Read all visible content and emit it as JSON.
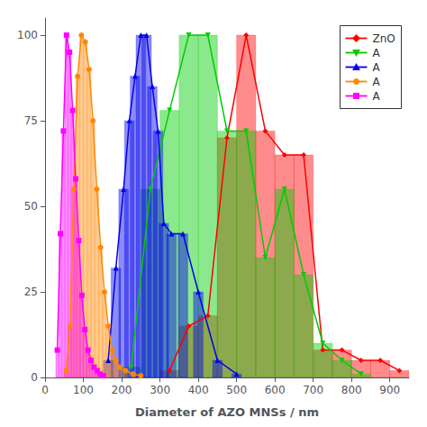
{
  "chart_data": {
    "type": "bar_line",
    "xlabel": "Diameter of AZO MNSs / nm",
    "xlim": [
      0,
      950
    ],
    "ylim": [
      0,
      105
    ],
    "xticks": [
      0,
      100,
      200,
      300,
      400,
      500,
      600,
      700,
      800,
      900
    ],
    "yticks": [
      0,
      25,
      50,
      75,
      100
    ],
    "grid": false,
    "legend": "upper right",
    "series": [
      {
        "name": "ZnO",
        "color": "#FF0000",
        "marker": "diamond",
        "bar_width": 50,
        "x": [
          325,
          375,
          425,
          475,
          525,
          575,
          625,
          675,
          725,
          775,
          825,
          875,
          925
        ],
        "values": [
          2,
          15,
          18,
          70,
          100,
          72,
          65,
          65,
          8,
          8,
          5,
          5,
          2
        ]
      },
      {
        "name": "A",
        "color": "#00CC00",
        "marker": "triangle_down",
        "bar_width": 50,
        "x": [
          225,
          275,
          325,
          375,
          425,
          475,
          525,
          575,
          625,
          675,
          725,
          775,
          825
        ],
        "values": [
          3,
          55,
          78,
          100,
          100,
          72,
          72,
          35,
          55,
          30,
          10,
          5,
          1
        ]
      },
      {
        "name": "A",
        "color": "#0000EE",
        "marker": "triangle_up",
        "bar_width": 25,
        "x": [
          165,
          185,
          205,
          220,
          235,
          250,
          265,
          280,
          295,
          310,
          330,
          360,
          400,
          450,
          500
        ],
        "values": [
          5,
          32,
          55,
          75,
          88,
          100,
          100,
          85,
          72,
          45,
          42,
          42,
          25,
          5,
          1
        ]
      },
      {
        "name": "A",
        "color": "#FF8800",
        "marker": "circle",
        "bar_width": 10,
        "x": [
          55,
          65,
          75,
          85,
          95,
          105,
          115,
          125,
          135,
          145,
          155,
          165,
          175,
          185,
          195,
          210,
          230,
          250
        ],
        "values": [
          2,
          15,
          55,
          88,
          100,
          98,
          90,
          75,
          55,
          38,
          25,
          15,
          8,
          5,
          3,
          2,
          1,
          0.5
        ]
      },
      {
        "name": "A",
        "color": "#FF00FF",
        "marker": "square",
        "bar_width": 8,
        "x": [
          32,
          40,
          48,
          56,
          64,
          72,
          80,
          88,
          96,
          104,
          112,
          120,
          128,
          136,
          144,
          152
        ],
        "values": [
          8,
          42,
          72,
          100,
          95,
          78,
          58,
          40,
          24,
          14,
          8,
          5,
          3,
          2,
          1,
          0.5
        ]
      }
    ]
  }
}
